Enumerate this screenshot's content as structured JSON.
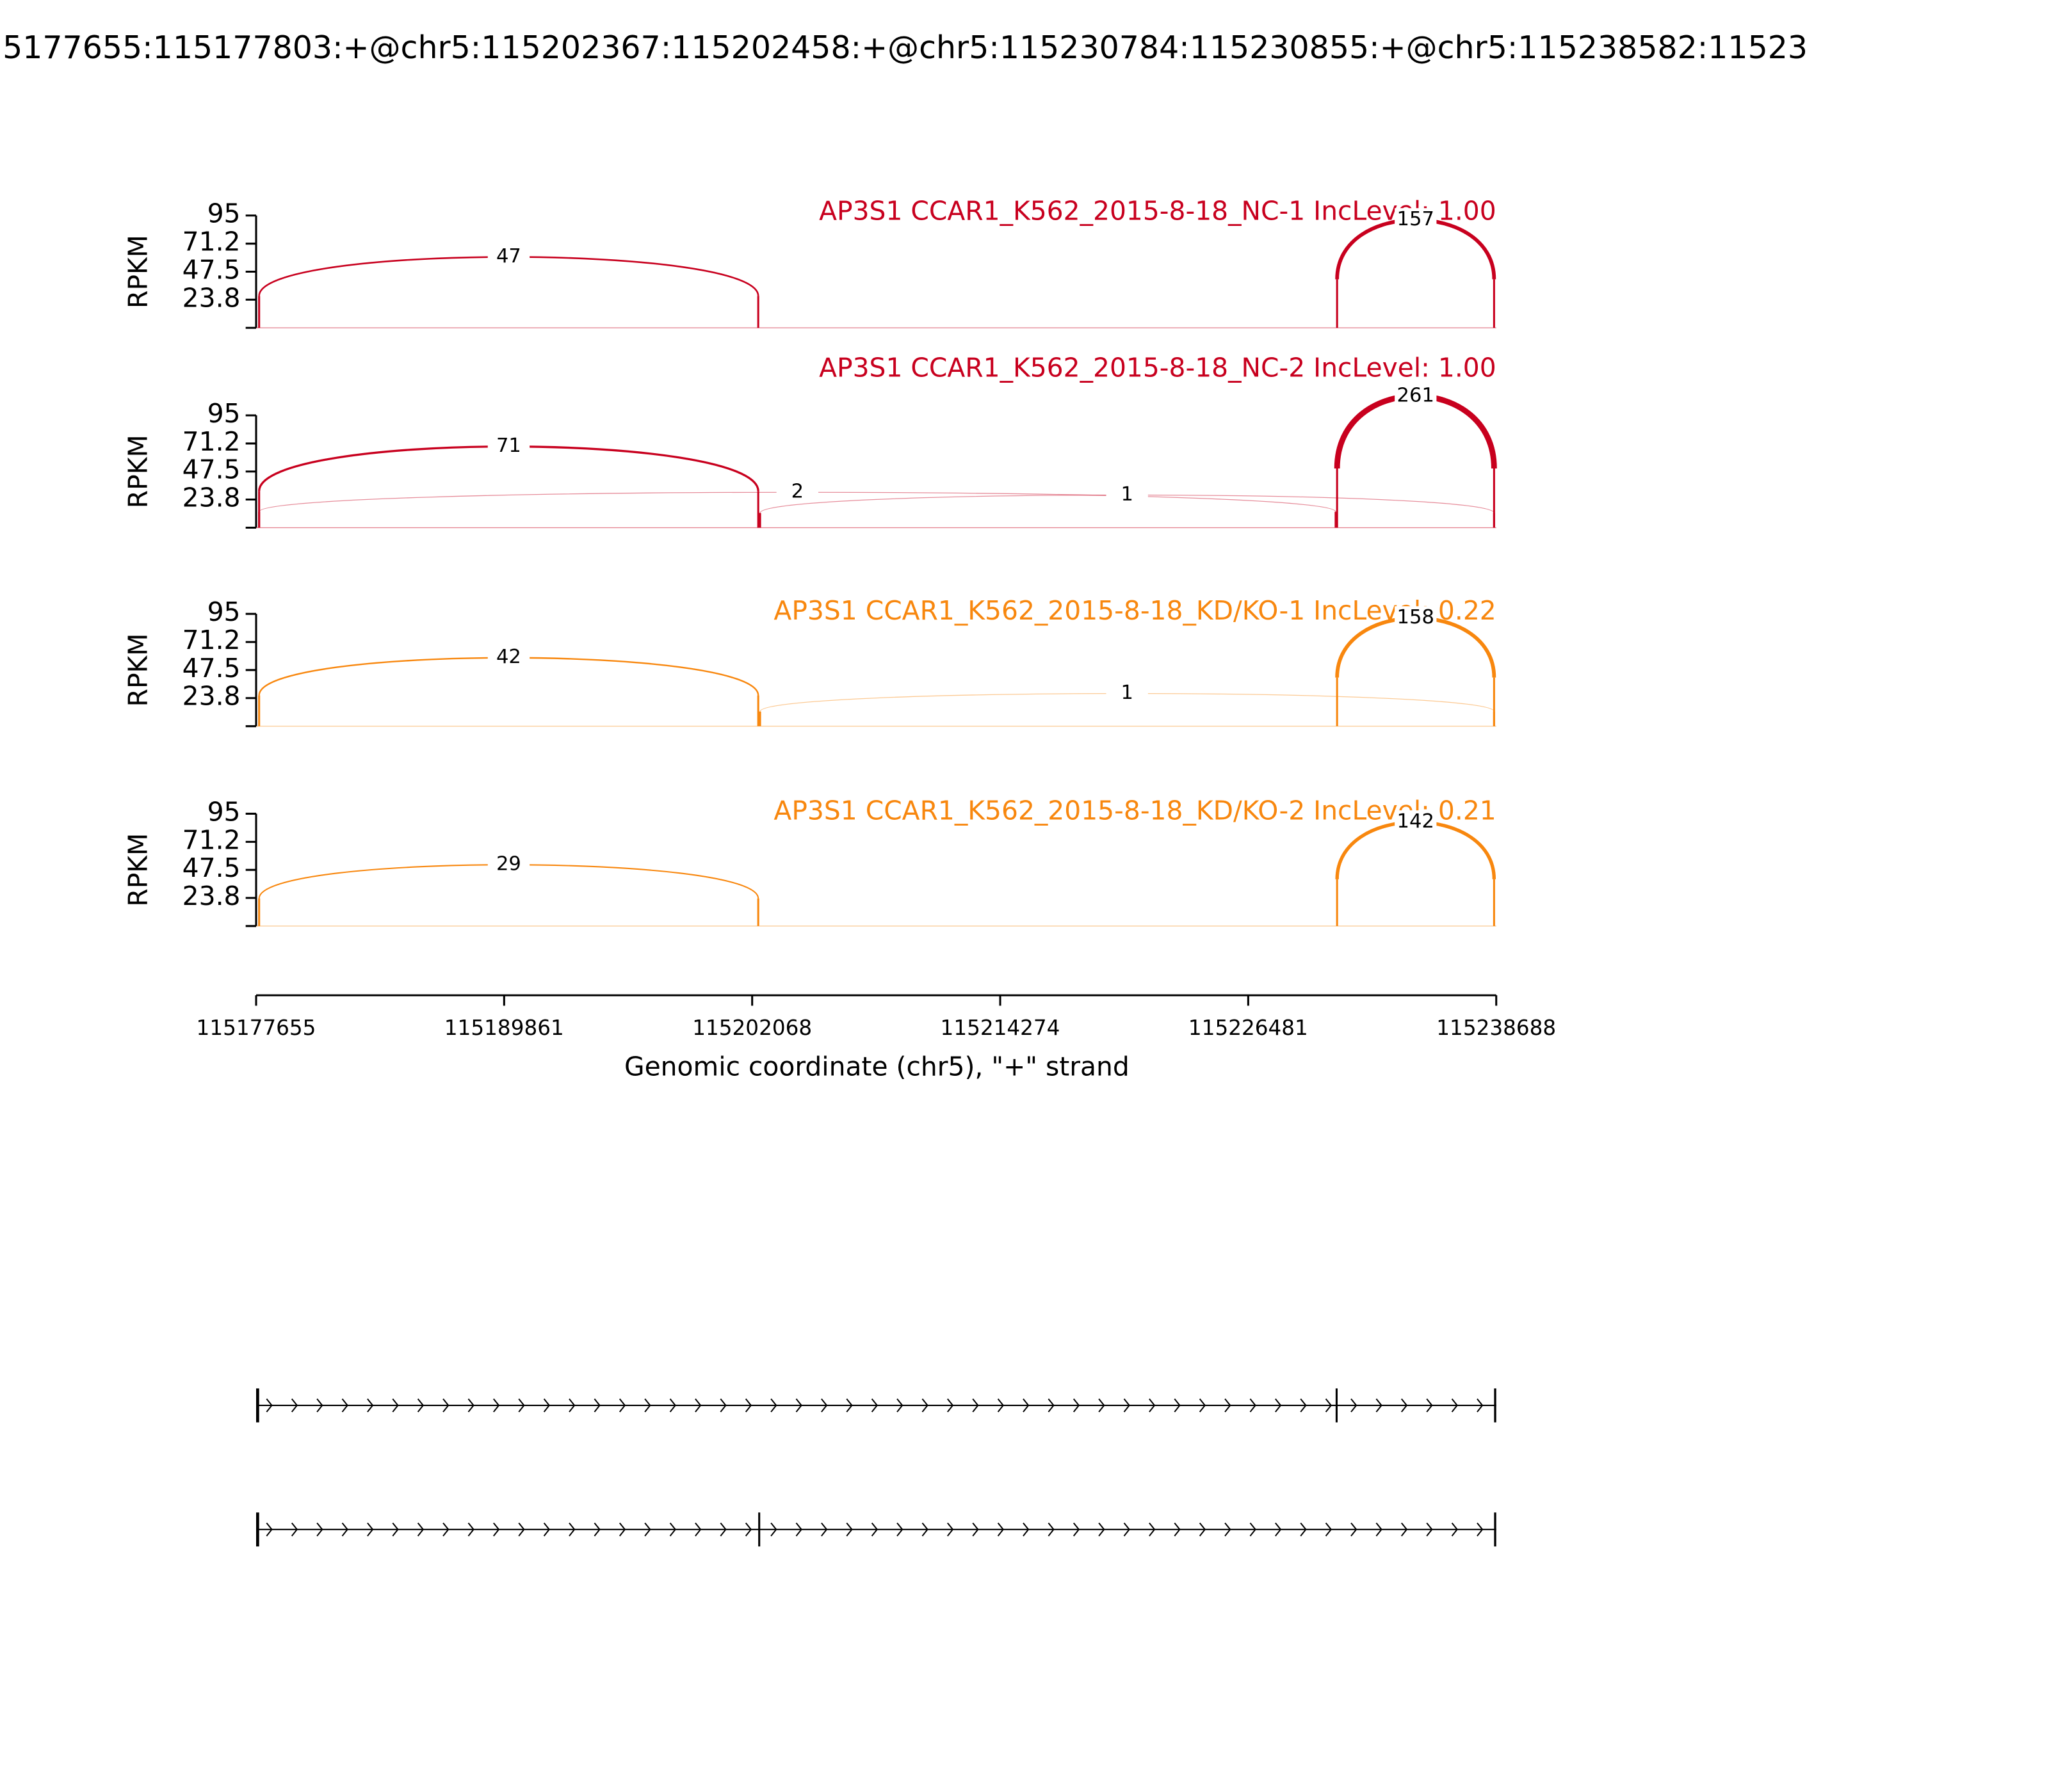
{
  "chart_data": {
    "type": "sashimi",
    "title": "5177655:115177803:+@chr5:115202367:115202458:+@chr5:115230784:115230855:+@chr5:115238582:11523",
    "xlabel": "Genomic coordinate (chr5), \"+\" strand",
    "ylabel": "RPKM",
    "xlim": [
      115177655,
      115238688
    ],
    "xticks": [
      115177655,
      115189861,
      115202068,
      115214274,
      115226481,
      115238688
    ],
    "ylim": [
      0,
      95
    ],
    "yticks": [
      23.8,
      47.5,
      71.2,
      95
    ],
    "panels": [
      {
        "title": "AP3S1 CCAR1_K562_2015-8-18_NC-1 IncLevel: 1.00",
        "color": "#c8001e",
        "junctions": [
          {
            "start": 115177803,
            "end": 115202367,
            "count": 47
          },
          {
            "start": 115230855,
            "end": 115238582,
            "count": 157
          }
        ]
      },
      {
        "title": "AP3S1 CCAR1_K562_2015-8-18_NC-2 IncLevel: 1.00",
        "color": "#c8001e",
        "junctions": [
          {
            "start": 115177803,
            "end": 115202367,
            "count": 71
          },
          {
            "start": 115177803,
            "end": 115230784,
            "count": 2
          },
          {
            "start": 115202458,
            "end": 115238582,
            "count": 1
          },
          {
            "start": 115230855,
            "end": 115238582,
            "count": 261
          }
        ]
      },
      {
        "title": "AP3S1 CCAR1_K562_2015-8-18_KD/KO-1 IncLevel: 0.22",
        "color": "#f8870e",
        "junctions": [
          {
            "start": 115177803,
            "end": 115202367,
            "count": 42
          },
          {
            "start": 115202458,
            "end": 115238582,
            "count": 1
          },
          {
            "start": 115230855,
            "end": 115238582,
            "count": 158
          }
        ]
      },
      {
        "title": "AP3S1 CCAR1_K562_2015-8-18_KD/KO-2 IncLevel: 0.21",
        "color": "#f8870e",
        "junctions": [
          {
            "start": 115177803,
            "end": 115202367,
            "count": 29
          },
          {
            "start": 115230855,
            "end": 115238582,
            "count": 142
          }
        ]
      }
    ],
    "transcripts": [
      {
        "exons": [
          [
            115177655,
            115177803
          ],
          [
            115230784,
            115230855
          ],
          [
            115238582,
            115238688
          ]
        ]
      },
      {
        "exons": [
          [
            115177655,
            115177803
          ],
          [
            115202367,
            115202458
          ],
          [
            115238582,
            115238688
          ]
        ]
      }
    ]
  }
}
